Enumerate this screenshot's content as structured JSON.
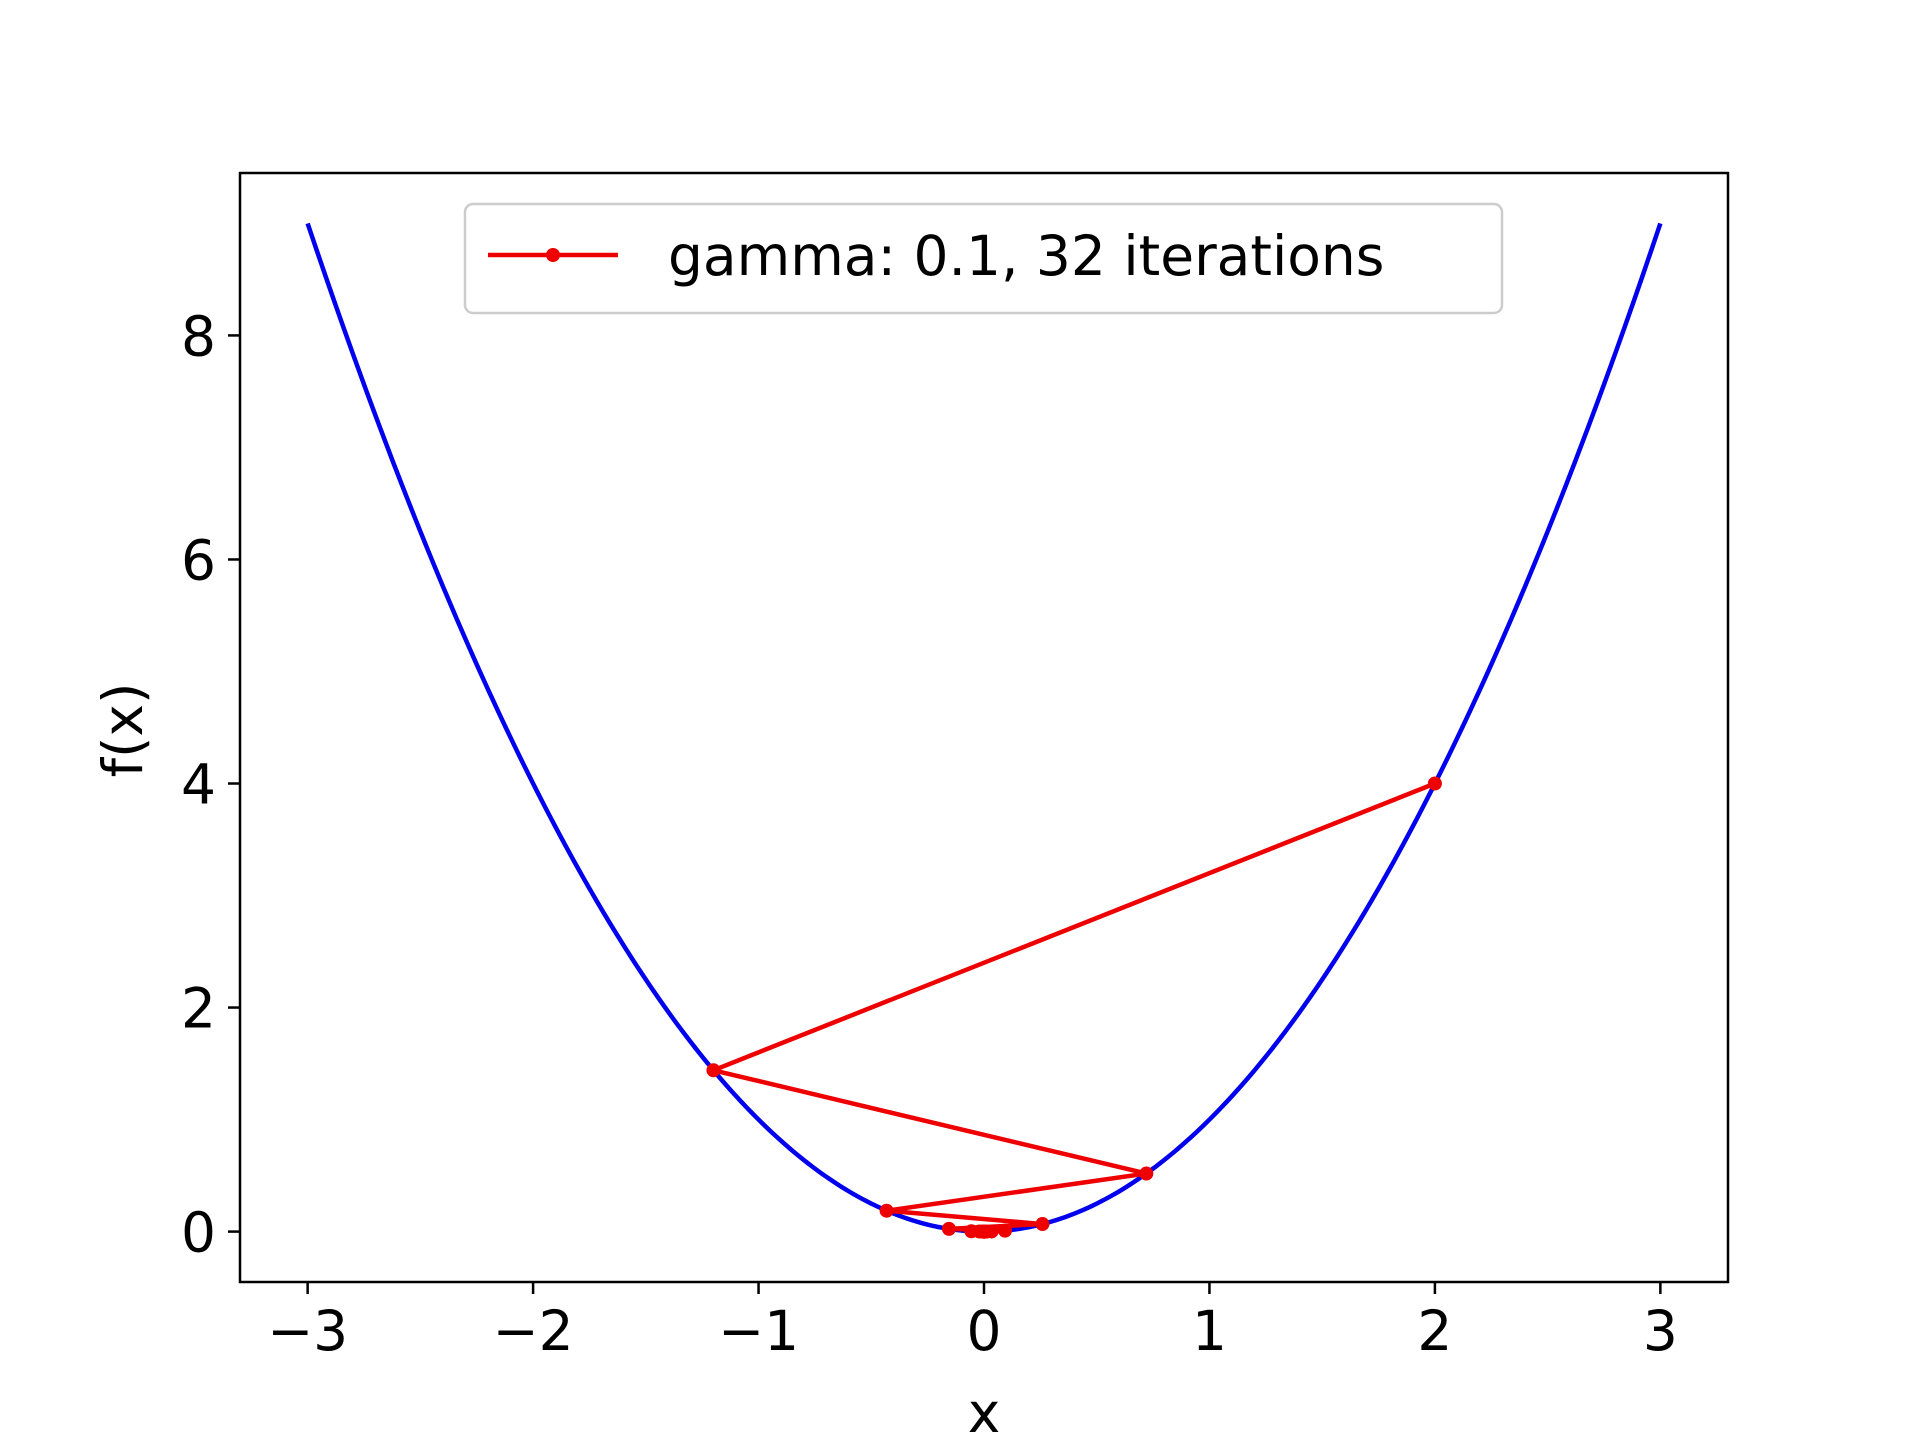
{
  "chart_data": {
    "type": "line",
    "xlabel": "x",
    "ylabel": "f(x)",
    "xlim": [
      -3.3,
      3.3
    ],
    "ylim": [
      -0.45,
      9.45
    ],
    "xticks": [
      -3,
      -2,
      -1,
      0,
      1,
      2,
      3
    ],
    "xtick_labels": [
      "−3",
      "−2",
      "−1",
      "0",
      "1",
      "2",
      "3"
    ],
    "yticks": [
      0,
      2,
      4,
      6,
      8
    ],
    "ytick_labels": [
      "0",
      "2",
      "4",
      "6",
      "8"
    ],
    "grid": false,
    "legend_placement": "upper center",
    "series": [
      {
        "function": "x^2",
        "x_range": [
          -3,
          3
        ],
        "color": "#0000ee",
        "marker": "none"
      },
      {
        "name": "gamma: 0.1, 32 iterations",
        "color": "#ee0000",
        "marker": "circle",
        "x": [
          2.0,
          -1.2,
          0.72,
          -0.432,
          0.2592,
          -0.1555,
          0.0933,
          -0.056,
          0.0336,
          -0.0202,
          0.0121,
          -0.0073,
          0.0044,
          -0.0026,
          0.0016,
          -0.0009,
          0.0006,
          -0.0003,
          0.0002,
          -0.0001,
          0.0001,
          0.0,
          0.0,
          0.0,
          0.0,
          0.0,
          0.0,
          0.0,
          0.0,
          0.0,
          0.0,
          0.0,
          0.0
        ],
        "y": [
          4.0,
          1.44,
          0.5184,
          0.1866,
          0.0672,
          0.0242,
          0.0087,
          0.0031,
          0.0011,
          0.0004,
          0.0001,
          0.0001,
          0.0,
          0.0,
          0.0,
          0.0,
          0.0,
          0.0,
          0.0,
          0.0,
          0.0,
          0.0,
          0.0,
          0.0,
          0.0,
          0.0,
          0.0,
          0.0,
          0.0,
          0.0,
          0.0,
          0.0,
          0.0
        ]
      }
    ]
  }
}
